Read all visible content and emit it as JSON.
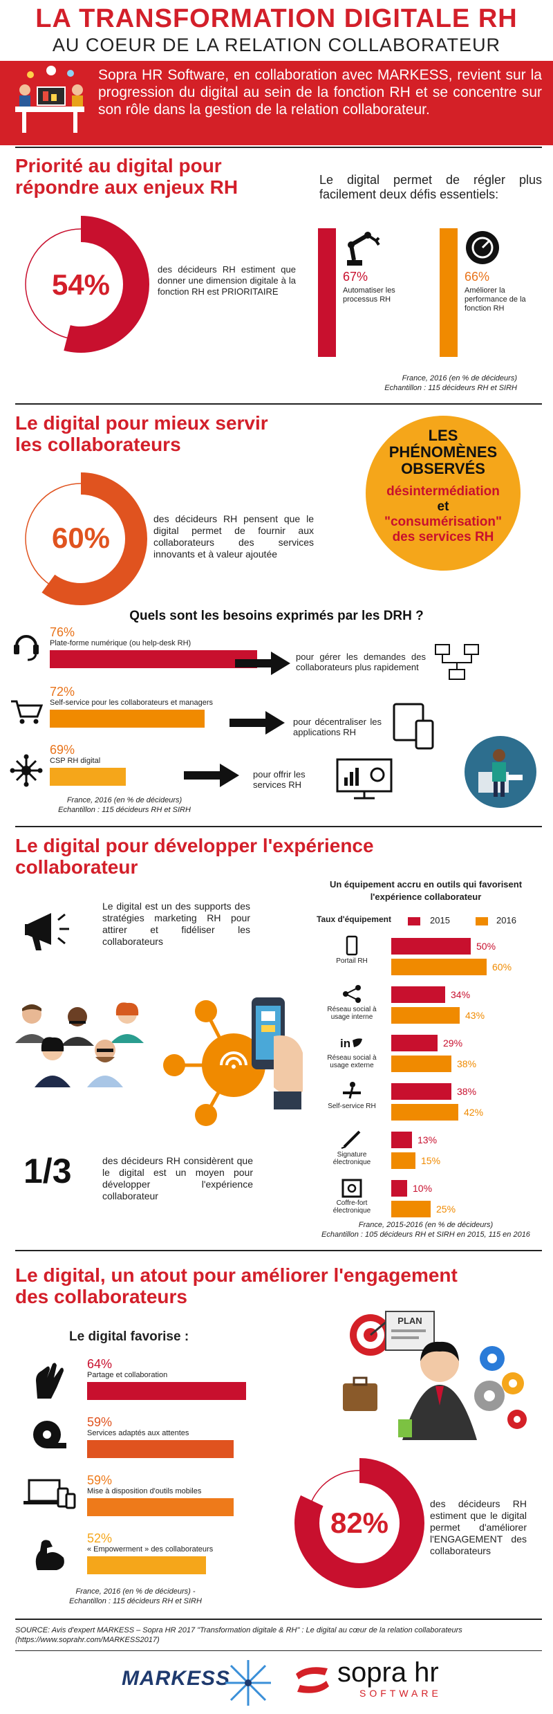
{
  "header": {
    "title": "LA TRANSFORMATION DIGITALE RH",
    "subtitle": "AU COEUR DE LA RELATION COLLABORATEUR",
    "intro": "Sopra HR Software, en collaboration avec MARKESS, revient sur la progression du digital au sein de la fonction RH et se concentre sur son rôle dans la gestion de la relation collaborateur."
  },
  "section1": {
    "title_l1": "Priorité au digital pour",
    "title_l2": "répondre aux enjeux RH",
    "donut": {
      "value": 54,
      "label": "54%"
    },
    "donut_text": "des décideurs RH estiment que donner une dimension digitale à la fonction RH est PRIORITAIRE",
    "challenges_text": "Le digital permet de régler plus facilement deux défis essentiels:",
    "challenges": [
      {
        "pct": "67%",
        "value": 67,
        "label": "Automatiser les processus RH",
        "color": "#c8102e"
      },
      {
        "pct": "66%",
        "value": 66,
        "label": "Améliorer la performance de la fonction RH",
        "color": "#f08a00"
      }
    ],
    "note_l1": "France, 2016 (en % de décideurs)",
    "note_l2": "Echantillon : 115 décideurs RH et SIRH"
  },
  "section2": {
    "title_l1": "Le digital pour mieux servir",
    "title_l2": "les collaborateurs",
    "donut": {
      "value": 60,
      "label": "60%"
    },
    "donut_text": "des décideurs RH pensent que le digital permet de fournir aux collaborateurs des services innovants et à valeur ajoutée",
    "phen": {
      "l1": "LES",
      "l2": "PHÉNOMÈNES",
      "l3": "OBSERVÉS",
      "w1": "désintermédiation",
      "and": "et",
      "w2": "\"consumérisation\"",
      "w3": "des services RH"
    },
    "needs_title": "Quels sont les besoins exprimés par les DRH ?",
    "needs": [
      {
        "pct": "76%",
        "value": 76,
        "label": "Plate-forme numérique (ou help-desk RH)",
        "color": "#c8102e",
        "outcome": "pour gérer les demandes des collaborateurs plus rapidement"
      },
      {
        "pct": "72%",
        "value": 72,
        "label": "Self-service pour les collaborateurs et managers",
        "color": "#f08a00",
        "outcome": "pour décentraliser les applications RH"
      },
      {
        "pct": "69%",
        "value": 69,
        "label": "CSP RH digital",
        "color": "#f5a61a",
        "outcome": "pour offrir les services RH"
      }
    ],
    "note_l1": "France, 2016 (en % de décideurs)",
    "note_l2": "Echantillon : 115 décideurs RH et SIRH"
  },
  "section3": {
    "title_l1": "Le digital pour développer l'expérience",
    "title_l2": "collaborateur",
    "marketing_text": "Le digital est un des supports des stratégies marketing RH pour attirer et fidéliser les collaborateurs",
    "third": "1/3",
    "third_text": "des décideurs RH considèrent que le digital est un moyen pour développer l'expérience collaborateur",
    "chart_title_l1": "Un équipement accru en outils qui favorisent",
    "chart_title_l2": "l'expérience collaborateur",
    "chart_label": "Taux d'équipement",
    "note_l1": "France, 2015-2016 (en % de décideurs)",
    "note_l2": "Echantillon : 105 décideurs RH et SIRH en 2015, 115 en 2016"
  },
  "chart_data": {
    "type": "bar",
    "categories": [
      "Portail RH",
      "Réseau social à usage interne",
      "Réseau social à usage externe",
      "Self-service RH",
      "Signature électronique",
      "Coffre-fort électronique"
    ],
    "series": [
      {
        "name": "2015",
        "values": [
          50,
          34,
          29,
          38,
          13,
          10
        ],
        "labels": [
          "50%",
          "34%",
          "29%",
          "38%",
          "13%",
          "10%"
        ],
        "color": "#c8102e"
      },
      {
        "name": "2016",
        "values": [
          60,
          43,
          38,
          42,
          15,
          25
        ],
        "labels": [
          "60%",
          "43%",
          "38%",
          "42%",
          "15%",
          "25%"
        ],
        "color": "#f08a00"
      }
    ],
    "ylim": [
      0,
      70
    ],
    "legend": "top-right",
    "grid": false
  },
  "section4": {
    "title_l1": "Le digital, un atout pour améliorer l'engagement",
    "title_l2": "des collaborateurs",
    "favorise": "Le digital favorise :",
    "items": [
      {
        "pct": "64%",
        "value": 64,
        "label": "Partage et collaboration",
        "color": "#c8102e"
      },
      {
        "pct": "59%",
        "value": 59,
        "label": "Services adaptés aux attentes",
        "color": "#e0531f"
      },
      {
        "pct": "59%",
        "value": 59,
        "label": "Mise à disposition d'outils mobiles",
        "color": "#ee7a1a"
      },
      {
        "pct": "52%",
        "value": 52,
        "label": "« Empowerment » des collaborateurs",
        "color": "#f5a61a"
      }
    ],
    "plan": "PLAN",
    "donut": {
      "value": 82,
      "label": "82%"
    },
    "donut_text": "des décideurs RH estiment que le digital permet d'améliorer l'ENGAGEMENT des collaborateurs",
    "note_l1": "France, 2016 (en % de décideurs) -",
    "note_l2": "Echantillon : 115 décideurs RH et SIRH"
  },
  "footer": {
    "source": "SOURCE: Avis d'expert MARKESS – Sopra HR 2017 \"Transformation digitale & RH\" : Le digital au cœur de la relation collaborateurs (https://www.soprahr.com/MARKESS2017)",
    "markess": "MARKESS",
    "sopra": "sopra hr",
    "software": "SOFTWARE"
  },
  "colors": {
    "red": "#c8102e",
    "orange": "#f08a00",
    "yellow": "#f5a61a",
    "title_red": "#d31f2a"
  },
  "icons": [
    "headset-icon",
    "cart-icon",
    "network-icon",
    "robot-arm-icon",
    "gauge-icon",
    "computer-network-icon",
    "devices-icon",
    "dashboard-icon",
    "megaphone-icon",
    "smartphone-wifi-icon",
    "share-icon",
    "linkedin-twitter-icon",
    "self-service-icon",
    "pen-icon",
    "safe-icon",
    "hands-icon",
    "measuring-tape-icon",
    "mobile-devices-icon",
    "bicep-icon",
    "target-icon",
    "gears-icon"
  ]
}
